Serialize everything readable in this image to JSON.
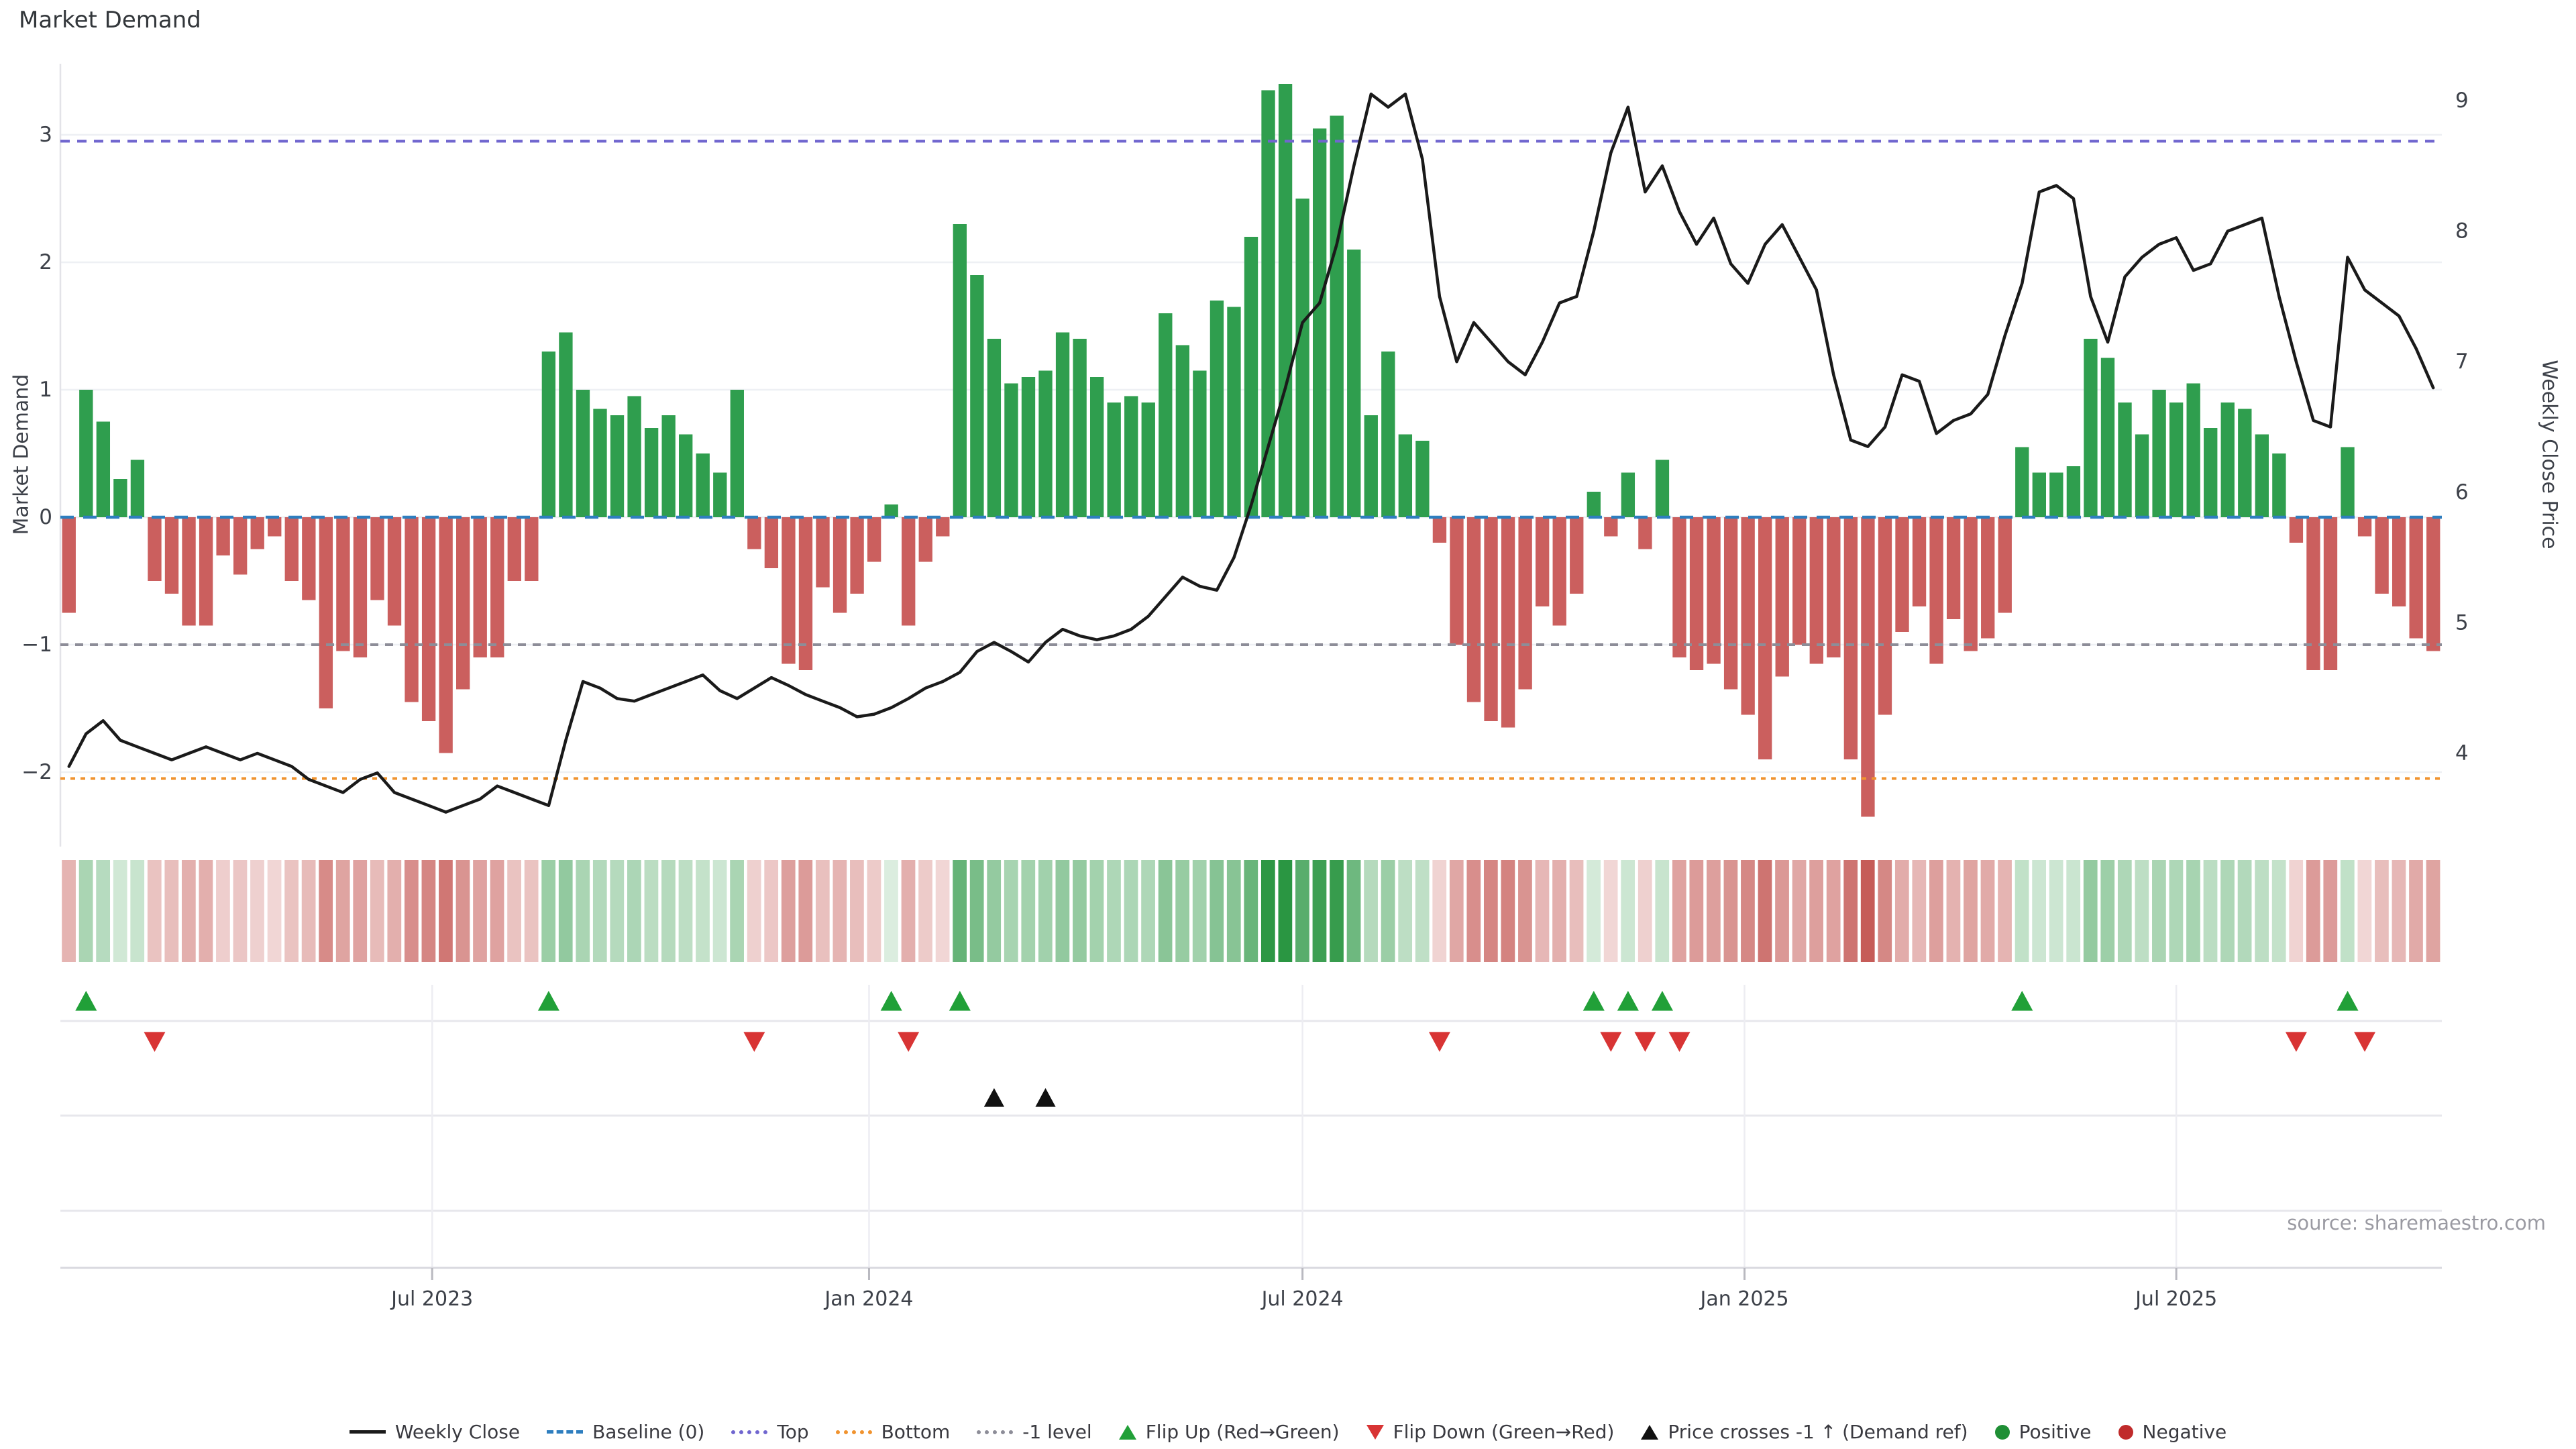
{
  "title": "Market Demand",
  "source": "source: sharemaestro.com",
  "chart_data": {
    "type": "bar+line",
    "title": "Market Demand",
    "left_axis": {
      "label": "Market Demand",
      "ticks": [
        3,
        2,
        1,
        0,
        -1,
        -2
      ],
      "range": [
        -2.6,
        3.55
      ]
    },
    "right_axis": {
      "label": "Weekly Close Price",
      "ticks": [
        9,
        8,
        7,
        6,
        5,
        4
      ],
      "range": [
        3.4,
        9.4
      ]
    },
    "x_ticks": {
      "labels": [
        "Jul 2023",
        "Jan 2024",
        "Jul 2024",
        "Jan 2025",
        "Jul 2025"
      ],
      "week_index": [
        21.2,
        46.7,
        72.0,
        97.8,
        123.0
      ]
    },
    "reference_lines": {
      "baseline": 0,
      "top": 2.95,
      "bottom": -2.05,
      "minus1_level": -1
    },
    "weeks": 139,
    "series": [
      {
        "name": "Market Demand",
        "type": "bar",
        "axis": "left",
        "values": [
          -0.75,
          1.0,
          0.75,
          0.3,
          0.45,
          -0.5,
          -0.6,
          -0.85,
          -0.85,
          -0.3,
          -0.45,
          -0.25,
          -0.15,
          -0.5,
          -0.65,
          -1.5,
          -1.05,
          -1.1,
          -0.65,
          -0.85,
          -1.45,
          -1.6,
          -1.85,
          -1.35,
          -1.1,
          -1.1,
          -0.5,
          -0.5,
          1.3,
          1.45,
          1.0,
          0.85,
          0.8,
          0.95,
          0.7,
          0.8,
          0.65,
          0.5,
          0.35,
          1.0,
          -0.25,
          -0.4,
          -1.15,
          -1.2,
          -0.55,
          -0.75,
          -0.6,
          -0.35,
          0.1,
          -0.85,
          -0.35,
          -0.15,
          2.3,
          1.9,
          1.4,
          1.05,
          1.1,
          1.15,
          1.45,
          1.4,
          1.1,
          0.9,
          0.95,
          0.9,
          1.6,
          1.35,
          1.15,
          1.7,
          1.65,
          2.2,
          3.35,
          3.4,
          2.5,
          3.05,
          3.15,
          2.1,
          0.8,
          1.3,
          0.65,
          0.6,
          -0.2,
          -1.0,
          -1.45,
          -1.6,
          -1.65,
          -1.35,
          -0.7,
          -0.85,
          -0.6,
          0.2,
          -0.15,
          0.35,
          -0.25,
          0.45,
          -1.1,
          -1.2,
          -1.15,
          -1.35,
          -1.55,
          -1.9,
          -1.25,
          -1.0,
          -1.15,
          -1.1,
          -1.9,
          -2.35,
          -1.55,
          -0.9,
          -0.7,
          -1.15,
          -0.8,
          -1.05,
          -0.95,
          -0.75,
          0.55,
          0.35,
          0.35,
          0.4,
          1.4,
          1.25,
          0.9,
          0.65,
          1.0,
          0.9,
          1.05,
          0.7,
          0.9,
          0.85,
          0.65,
          0.5,
          -0.2,
          -1.2,
          -1.2,
          0.55,
          -0.15,
          -0.6,
          -0.7,
          -0.95,
          -1.05
        ]
      },
      {
        "name": "Weekly Close",
        "type": "line",
        "axis": "right",
        "values": [
          3.9,
          4.15,
          4.25,
          4.1,
          4.05,
          4.0,
          3.95,
          4.0,
          4.05,
          4.0,
          3.95,
          4.0,
          3.95,
          3.9,
          3.8,
          3.75,
          3.7,
          3.8,
          3.85,
          3.7,
          3.65,
          3.6,
          3.55,
          3.6,
          3.65,
          3.75,
          3.7,
          3.65,
          3.6,
          4.1,
          4.55,
          4.5,
          4.42,
          4.4,
          4.45,
          4.5,
          4.55,
          4.6,
          4.48,
          4.42,
          4.5,
          4.58,
          4.52,
          4.45,
          4.4,
          4.35,
          4.28,
          4.3,
          4.35,
          4.42,
          4.5,
          4.55,
          4.62,
          4.78,
          4.85,
          4.78,
          4.7,
          4.85,
          4.95,
          4.9,
          4.87,
          4.9,
          4.95,
          5.05,
          5.2,
          5.35,
          5.28,
          5.25,
          5.5,
          5.9,
          6.35,
          6.8,
          7.3,
          7.45,
          7.9,
          8.5,
          9.05,
          8.95,
          9.05,
          8.55,
          7.5,
          7.0,
          7.3,
          7.15,
          7.0,
          6.9,
          7.15,
          7.45,
          7.5,
          8.0,
          8.6,
          8.95,
          8.3,
          8.5,
          8.15,
          7.9,
          8.1,
          7.75,
          7.6,
          7.9,
          8.05,
          7.8,
          7.55,
          6.9,
          6.4,
          6.35,
          6.5,
          6.9,
          6.85,
          6.45,
          6.55,
          6.6,
          6.75,
          7.2,
          7.6,
          8.3,
          8.35,
          8.25,
          7.5,
          7.15,
          7.65,
          7.8,
          7.9,
          7.95,
          7.7,
          7.75,
          8.0,
          8.05,
          8.1,
          7.5,
          7.0,
          6.55,
          6.5,
          7.8,
          7.55,
          7.45,
          7.35,
          7.1,
          6.8
        ]
      }
    ],
    "heatmap": {
      "description": "weekly demand sign/intensity strip, colors derived from bar values"
    },
    "markers": {
      "flip_up_weeks": [
        1,
        28,
        48,
        52,
        89,
        91,
        93,
        114,
        133
      ],
      "flip_down_weeks": [
        5,
        40,
        49,
        80,
        90,
        92,
        94,
        130,
        134
      ],
      "price_cross_up_weeks": [
        54,
        57
      ]
    },
    "colors": {
      "positive": "#2f9e4e",
      "negative": "#cb5f5e",
      "price_line": "#1a1a1a",
      "baseline": "#2e7ebf",
      "top_line": "#7066cf",
      "bottom_line": "#f0932f",
      "minus1_line": "#8d8d98",
      "grid": "#eef0f4",
      "axis_text": "#3d4149",
      "flip_up": "#21a038",
      "flip_down": "#d83434",
      "price_cross": "#111111"
    },
    "legend_position": "bottom-center",
    "grid": true
  },
  "legend": {
    "items": [
      {
        "label": "Weekly Close",
        "swatch": "line-solid-black"
      },
      {
        "label": "Baseline (0)",
        "swatch": "line-dashed-blue"
      },
      {
        "label": "Top",
        "swatch": "line-dotted-purple"
      },
      {
        "label": "Bottom",
        "swatch": "line-dotted-orange"
      },
      {
        "label": "-1 level",
        "swatch": "line-dotted-gray"
      },
      {
        "label": "Flip Up (Red→Green)",
        "swatch": "triangle-up-green"
      },
      {
        "label": "Flip Down (Green→Red)",
        "swatch": "triangle-down-red"
      },
      {
        "label": "Price crosses -1 ↑ (Demand ref)",
        "swatch": "triangle-up-black"
      },
      {
        "label": "Positive",
        "swatch": "circle-green"
      },
      {
        "label": "Negative",
        "swatch": "circle-red"
      }
    ]
  }
}
